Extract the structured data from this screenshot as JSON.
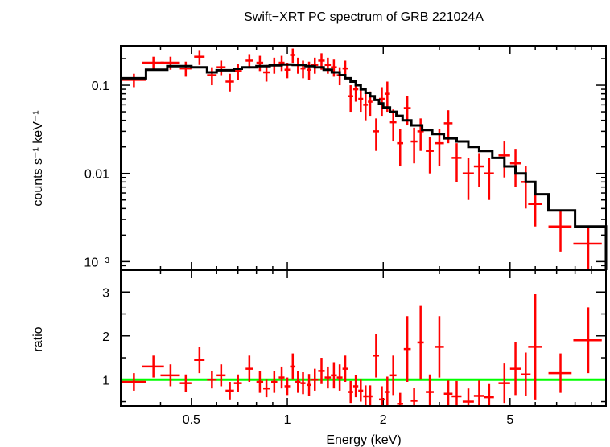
{
  "chart_data": [
    {
      "type": "scatter",
      "title": "Swift−XRT PC spectrum of GRB 221024A",
      "xlabel": "Energy (keV)",
      "ylabel": "counts s⁻¹ keV⁻¹",
      "xscale": "log",
      "yscale": "log",
      "xlim": [
        0.3,
        10
      ],
      "ylim": [
        0.0008,
        0.28
      ],
      "xticklabels": [
        "0.5",
        "1",
        "2",
        "5"
      ],
      "yticklabels": [
        "0.1",
        "0.01",
        "10⁻³"
      ],
      "series": [
        {
          "style": "crosses",
          "color": "#ff0000",
          "x": [
            0.33,
            0.38,
            0.43,
            0.48,
            0.53,
            0.58,
            0.62,
            0.66,
            0.7,
            0.76,
            0.82,
            0.86,
            0.91,
            0.96,
            1.0,
            1.04,
            1.08,
            1.12,
            1.17,
            1.22,
            1.28,
            1.34,
            1.4,
            1.46,
            1.52,
            1.58,
            1.64,
            1.7,
            1.76,
            1.82,
            1.9,
            1.98,
            2.06,
            2.15,
            2.26,
            2.38,
            2.5,
            2.62,
            2.8,
            3.0,
            3.2,
            3.4,
            3.7,
            4.0,
            4.3,
            4.8,
            5.2,
            5.6,
            6.0,
            7.2,
            8.8
          ],
          "xerr": [
            0.03,
            0.03,
            0.03,
            0.02,
            0.02,
            0.02,
            0.02,
            0.02,
            0.02,
            0.02,
            0.02,
            0.02,
            0.02,
            0.02,
            0.02,
            0.02,
            0.02,
            0.02,
            0.02,
            0.03,
            0.03,
            0.03,
            0.03,
            0.03,
            0.03,
            0.03,
            0.03,
            0.03,
            0.03,
            0.03,
            0.04,
            0.04,
            0.04,
            0.05,
            0.05,
            0.06,
            0.06,
            0.06,
            0.08,
            0.1,
            0.1,
            0.12,
            0.15,
            0.15,
            0.15,
            0.2,
            0.2,
            0.2,
            0.3,
            0.6,
            0.9
          ],
          "y": [
            0.115,
            0.18,
            0.18,
            0.155,
            0.21,
            0.13,
            0.16,
            0.11,
            0.145,
            0.19,
            0.18,
            0.14,
            0.17,
            0.18,
            0.15,
            0.22,
            0.17,
            0.155,
            0.15,
            0.17,
            0.19,
            0.17,
            0.16,
            0.13,
            0.155,
            0.075,
            0.09,
            0.07,
            0.06,
            0.065,
            0.03,
            0.07,
            0.08,
            0.038,
            0.022,
            0.055,
            0.023,
            0.03,
            0.018,
            0.022,
            0.037,
            0.015,
            0.01,
            0.012,
            0.01,
            0.016,
            0.013,
            0.008,
            0.0045,
            0.0025,
            0.0016
          ],
          "yerr": [
            0.02,
            0.03,
            0.03,
            0.03,
            0.04,
            0.03,
            0.03,
            0.025,
            0.03,
            0.035,
            0.035,
            0.03,
            0.035,
            0.035,
            0.03,
            0.04,
            0.035,
            0.035,
            0.035,
            0.035,
            0.04,
            0.035,
            0.035,
            0.03,
            0.035,
            0.025,
            0.025,
            0.02,
            0.02,
            0.02,
            0.012,
            0.025,
            0.03,
            0.015,
            0.01,
            0.02,
            0.01,
            0.012,
            0.008,
            0.01,
            0.015,
            0.007,
            0.005,
            0.005,
            0.005,
            0.007,
            0.006,
            0.004,
            0.002,
            0.0012,
            0.0008
          ]
        },
        {
          "style": "steps",
          "color": "#000000",
          "x_edges": [
            0.3,
            0.36,
            0.42,
            0.5,
            0.56,
            0.6,
            0.64,
            0.68,
            0.72,
            0.8,
            0.88,
            0.96,
            1.04,
            1.14,
            1.22,
            1.3,
            1.38,
            1.46,
            1.52,
            1.58,
            1.64,
            1.7,
            1.76,
            1.82,
            1.88,
            1.94,
            2.0,
            2.1,
            2.2,
            2.3,
            2.45,
            2.65,
            2.85,
            3.1,
            3.4,
            3.7,
            4.0,
            4.4,
            4.8,
            5.2,
            5.6,
            6.0,
            6.6,
            8.0,
            10.0
          ],
          "y": [
            0.12,
            0.15,
            0.165,
            0.16,
            0.14,
            0.148,
            0.148,
            0.154,
            0.16,
            0.165,
            0.168,
            0.172,
            0.17,
            0.165,
            0.16,
            0.15,
            0.14,
            0.13,
            0.12,
            0.11,
            0.1,
            0.09,
            0.082,
            0.075,
            0.068,
            0.062,
            0.056,
            0.05,
            0.045,
            0.04,
            0.035,
            0.031,
            0.028,
            0.025,
            0.023,
            0.02,
            0.018,
            0.015,
            0.012,
            0.01,
            0.008,
            0.0058,
            0.0038,
            0.0025,
            0.0008
          ]
        }
      ]
    },
    {
      "type": "scatter",
      "xlabel": "Energy (keV)",
      "ylabel": "ratio",
      "xscale": "log",
      "xlim": [
        0.3,
        10
      ],
      "ylim": [
        0.4,
        3.5
      ],
      "xticklabels": [
        "0.5",
        "1",
        "2",
        "5"
      ],
      "yticklabels": [
        "1",
        "2",
        "3"
      ],
      "reference_line": {
        "y": 1,
        "color": "#00ff00"
      },
      "series": [
        {
          "style": "crosses",
          "color": "#ff0000",
          "x": [
            0.33,
            0.38,
            0.43,
            0.48,
            0.53,
            0.58,
            0.62,
            0.66,
            0.7,
            0.76,
            0.82,
            0.86,
            0.91,
            0.96,
            1.0,
            1.04,
            1.08,
            1.12,
            1.17,
            1.22,
            1.28,
            1.34,
            1.4,
            1.46,
            1.52,
            1.58,
            1.64,
            1.7,
            1.76,
            1.82,
            1.9,
            1.98,
            2.06,
            2.15,
            2.26,
            2.38,
            2.5,
            2.62,
            2.8,
            3.0,
            3.2,
            3.4,
            3.7,
            4.0,
            4.3,
            4.8,
            5.2,
            5.6,
            6.0,
            7.2,
            8.8
          ],
          "xerr": [
            0.03,
            0.03,
            0.03,
            0.02,
            0.02,
            0.02,
            0.02,
            0.02,
            0.02,
            0.02,
            0.02,
            0.02,
            0.02,
            0.02,
            0.02,
            0.02,
            0.02,
            0.02,
            0.02,
            0.03,
            0.03,
            0.03,
            0.03,
            0.03,
            0.03,
            0.03,
            0.03,
            0.03,
            0.03,
            0.03,
            0.04,
            0.04,
            0.04,
            0.05,
            0.05,
            0.06,
            0.06,
            0.06,
            0.08,
            0.1,
            0.1,
            0.12,
            0.15,
            0.15,
            0.15,
            0.2,
            0.2,
            0.2,
            0.3,
            0.6,
            0.9
          ],
          "y": [
            0.95,
            1.3,
            1.1,
            0.92,
            1.45,
            1.0,
            1.1,
            0.75,
            0.92,
            1.25,
            0.95,
            0.8,
            0.95,
            1.05,
            0.85,
            1.3,
            0.95,
            0.92,
            0.88,
            1.0,
            1.2,
            1.05,
            1.1,
            1.05,
            1.25,
            0.72,
            0.85,
            0.75,
            0.62,
            0.62,
            1.55,
            0.55,
            0.72,
            1.1,
            0.45,
            1.7,
            0.52,
            1.85,
            0.72,
            1.75,
            0.68,
            0.62,
            0.5,
            0.63,
            0.6,
            0.92,
            1.25,
            1.12,
            1.75,
            1.15,
            1.9
          ],
          "yerr": [
            0.2,
            0.25,
            0.25,
            0.2,
            0.3,
            0.2,
            0.25,
            0.2,
            0.2,
            0.3,
            0.25,
            0.2,
            0.25,
            0.25,
            0.2,
            0.3,
            0.25,
            0.25,
            0.25,
            0.25,
            0.3,
            0.25,
            0.3,
            0.3,
            0.3,
            0.25,
            0.25,
            0.25,
            0.25,
            0.25,
            0.5,
            0.3,
            0.35,
            0.45,
            0.25,
            0.75,
            0.3,
            0.85,
            0.4,
            0.7,
            0.3,
            0.35,
            0.3,
            0.35,
            0.3,
            0.45,
            0.6,
            0.5,
            1.2,
            0.45,
            0.75
          ]
        }
      ]
    }
  ]
}
